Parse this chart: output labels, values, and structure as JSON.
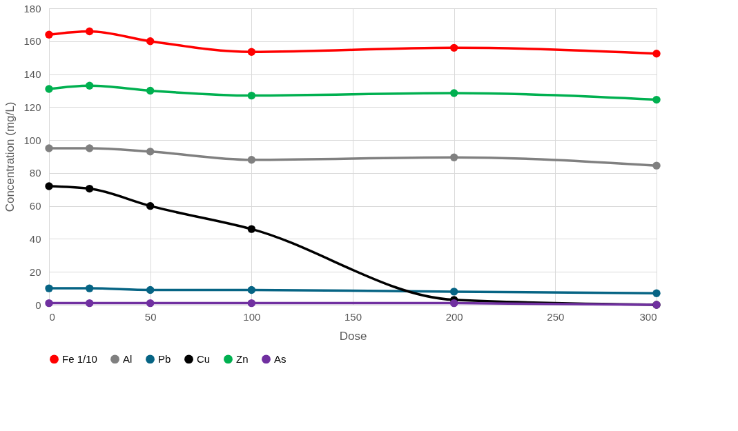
{
  "chart_data": {
    "type": "line",
    "xlabel": "Dose",
    "ylabel": "Concentration (mg/L)",
    "x": [
      0,
      20,
      50,
      100,
      200,
      300
    ],
    "xlim": [
      0,
      300
    ],
    "xticks": [
      0,
      50,
      100,
      150,
      200,
      250,
      300
    ],
    "ylim": [
      0,
      180
    ],
    "yticks": [
      0,
      20,
      40,
      60,
      80,
      100,
      120,
      140,
      160,
      180
    ],
    "grid": true,
    "legend": "bottom",
    "marker": "circle",
    "line_style": "solid",
    "series": [
      {
        "name": "Fe 1/10",
        "color": "#ff0000",
        "values": [
          164,
          166,
          160,
          153.5,
          156,
          152.5
        ]
      },
      {
        "name": "Al",
        "color": "#808080",
        "values": [
          95,
          95,
          93,
          88,
          89.5,
          84.5
        ]
      },
      {
        "name": "Pb",
        "color": "#066484",
        "values": [
          10,
          10,
          9,
          9,
          8,
          7
        ]
      },
      {
        "name": "Cu",
        "color": "#000000",
        "values": [
          72,
          70.5,
          60,
          46,
          3,
          0
        ]
      },
      {
        "name": "Zn",
        "color": "#00b050",
        "values": [
          131,
          133,
          130,
          127,
          128.5,
          124.5
        ]
      },
      {
        "name": "As",
        "color": "#7030a0",
        "values": [
          1,
          1,
          1,
          1,
          1,
          0
        ]
      }
    ]
  }
}
